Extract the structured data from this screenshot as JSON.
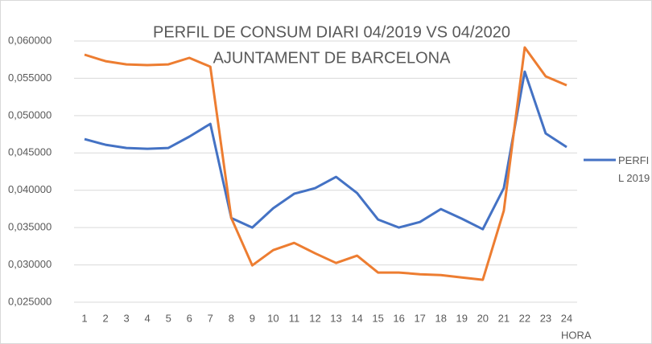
{
  "chart_data": {
    "type": "line",
    "title": "PERFIL DE CONSUM DIARI 04/2019 VS 04/2020",
    "subtitle": "AJUNTAMENT DE BARCELONA",
    "x_label": "HORA",
    "categories": [
      "1",
      "2",
      "3",
      "4",
      "5",
      "6",
      "7",
      "8",
      "9",
      "10",
      "11",
      "12",
      "13",
      "14",
      "15",
      "16",
      "17",
      "18",
      "19",
      "20",
      "21",
      "22",
      "23",
      "24"
    ],
    "series": [
      {
        "name": "PERFIL 2019",
        "color": "#4472c4",
        "values": [
          0.04685,
          0.0461,
          0.04567,
          0.04556,
          0.04567,
          0.04718,
          0.0489,
          0.03629,
          0.035,
          0.03759,
          0.03953,
          0.04028,
          0.04179,
          0.03963,
          0.03608,
          0.035,
          0.03575,
          0.03748,
          0.03619,
          0.03478,
          0.04028,
          0.0559,
          0.04761,
          0.04578
        ]
      },
      {
        "color": "#ed7d31",
        "values": [
          0.05817,
          0.0573,
          0.05687,
          0.05677,
          0.05687,
          0.05774,
          0.05655,
          0.03629,
          0.02993,
          0.03198,
          0.03295,
          0.03155,
          0.03026,
          0.03123,
          0.02897,
          0.02897,
          0.02875,
          0.02864,
          0.02832,
          0.028,
          0.03726,
          0.05914,
          0.05526,
          0.05407
        ]
      }
    ],
    "ylim": [
      0.025,
      0.06
    ],
    "yticks": [
      {
        "value": 0.025,
        "label": "0,025000"
      },
      {
        "value": 0.03,
        "label": "0,030000"
      },
      {
        "value": 0.035,
        "label": "0,035000"
      },
      {
        "value": 0.04,
        "label": "0,040000"
      },
      {
        "value": 0.045,
        "label": "0,045000"
      },
      {
        "value": 0.05,
        "label": "0,050000"
      },
      {
        "value": 0.055,
        "label": "0,055000"
      },
      {
        "value": 0.06,
        "label": "0,060000"
      }
    ],
    "grid": true
  }
}
